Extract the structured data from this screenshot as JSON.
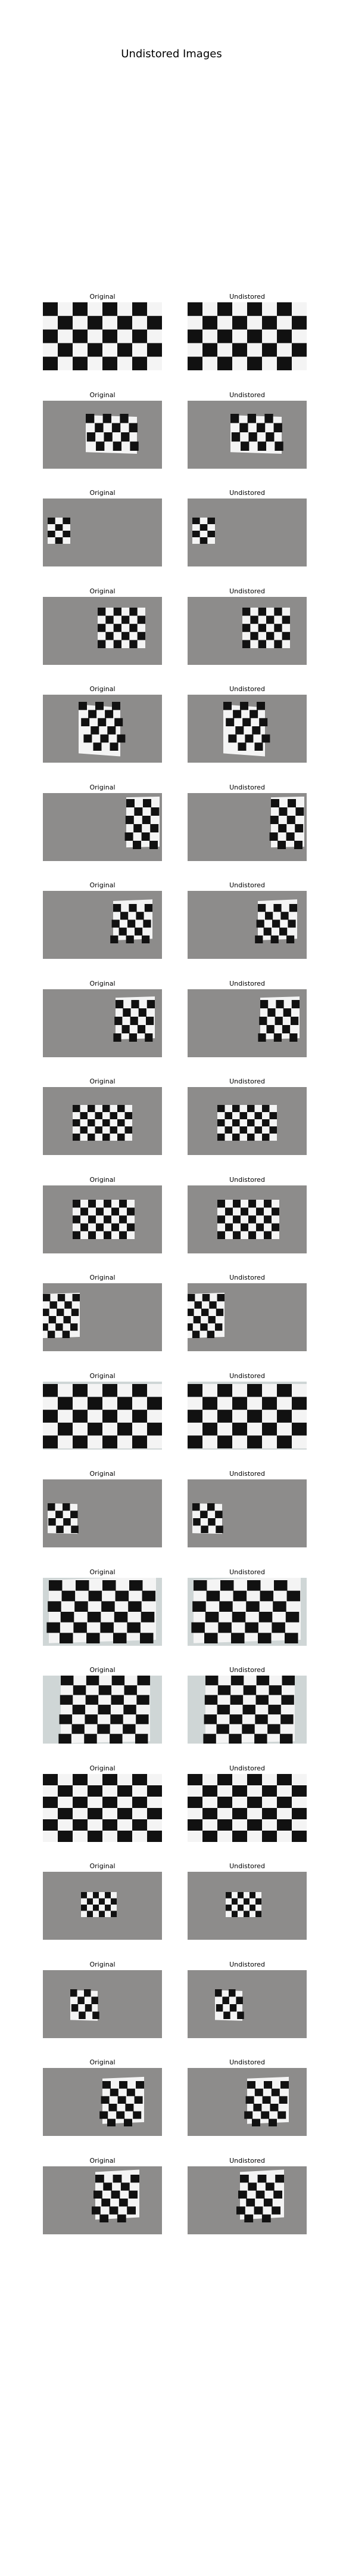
{
  "figure": {
    "title": "Undistored Images"
  },
  "column_titles": {
    "left": "Original",
    "right": "Undistored"
  },
  "colors": {
    "background": "#ffffff",
    "board_dark": "#111111",
    "board_light": "#f4f4f4",
    "gray_bg": "#8d8c8b",
    "light_bg": "#cfd6d6"
  },
  "rows": [
    {
      "bg": "white",
      "shape": "full"
    },
    {
      "bg": "gray",
      "shape": "tilt-small"
    },
    {
      "bg": "gray",
      "shape": "left-small"
    },
    {
      "bg": "gray",
      "shape": "right-med"
    },
    {
      "bg": "gray",
      "shape": "rotated"
    },
    {
      "bg": "gray",
      "shape": "far-right"
    },
    {
      "bg": "gray",
      "shape": "right-skew"
    },
    {
      "bg": "gray",
      "shape": "right-skew2"
    },
    {
      "bg": "gray",
      "shape": "center-wide"
    },
    {
      "bg": "gray",
      "shape": "center-wide2"
    },
    {
      "bg": "gray",
      "shape": "left-tilt"
    },
    {
      "bg": "light",
      "shape": "full-curved"
    },
    {
      "bg": "gray",
      "shape": "left-small2"
    },
    {
      "bg": "light",
      "shape": "wide-persp"
    },
    {
      "bg": "light",
      "shape": "wide-persp2"
    },
    {
      "bg": "light",
      "shape": "full-curved2"
    },
    {
      "bg": "gray",
      "shape": "center-small"
    },
    {
      "bg": "gray",
      "shape": "small-left"
    },
    {
      "bg": "gray",
      "shape": "right-persp"
    },
    {
      "bg": "gray",
      "shape": "right-persp2"
    }
  ]
}
